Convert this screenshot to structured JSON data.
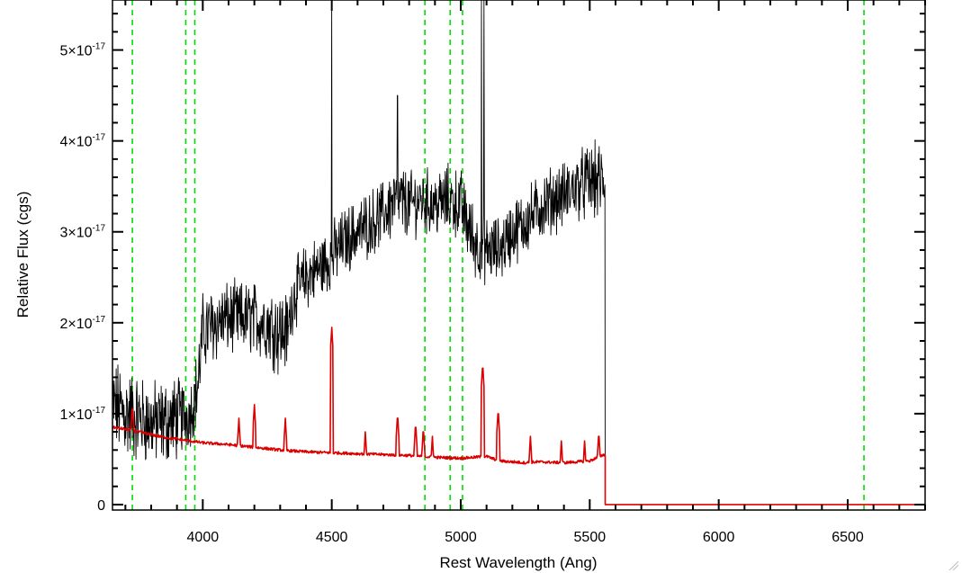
{
  "chart_data": {
    "type": "line",
    "xlabel": "Rest Wavelength (Ang)",
    "ylabel": "Relative Flux (cgs)",
    "xlim": [
      3650,
      6800
    ],
    "ylim": [
      -0.06,
      5.55
    ],
    "y_unit_exponent": "-17",
    "x_ticks": [
      4000,
      4500,
      5000,
      5500,
      6000,
      6500
    ],
    "x_tick_labels": [
      "4000",
      "4500",
      "5000",
      "5500",
      "6000",
      "6500"
    ],
    "x_minor_step": 100,
    "y_ticks": [
      0,
      1,
      2,
      3,
      4,
      5
    ],
    "y_tick_labels": [
      {
        "mantissa": "0",
        "exp": ""
      },
      {
        "mantissa": "1×10",
        "exp": "-17"
      },
      {
        "mantissa": "2×10",
        "exp": "-17"
      },
      {
        "mantissa": "3×10",
        "exp": "-17"
      },
      {
        "mantissa": "4×10",
        "exp": "-17"
      },
      {
        "mantissa": "5×10",
        "exp": "-17"
      }
    ],
    "y_minor_step": 0.2,
    "grid": false,
    "reference_lines": {
      "color": "#00dd00",
      "style": "dashed",
      "x": [
        3727,
        3934,
        3969,
        4861,
        4959,
        5007,
        6563
      ]
    },
    "series": [
      {
        "color": "#000000",
        "style": "noisy",
        "end_x": 5560,
        "x": [
          3650,
          3700,
          3750,
          3800,
          3850,
          3900,
          3950,
          3980,
          4000,
          4050,
          4100,
          4150,
          4200,
          4250,
          4300,
          4330,
          4350,
          4400,
          4450,
          4490,
          4550,
          4600,
          4650,
          4700,
          4750,
          4800,
          4850,
          4900,
          4950,
          5000,
          5050,
          5100,
          5150,
          5200,
          5250,
          5300,
          5350,
          5400,
          5450,
          5500,
          5555
        ],
        "y": [
          1.1,
          1.0,
          0.95,
          0.9,
          0.9,
          0.95,
          1.0,
          1.3,
          1.9,
          2.0,
          2.05,
          2.05,
          2.05,
          2.0,
          1.9,
          1.9,
          2.3,
          2.5,
          2.6,
          2.7,
          2.9,
          3.0,
          3.1,
          3.2,
          3.35,
          3.3,
          3.35,
          3.3,
          3.35,
          3.3,
          2.9,
          2.8,
          2.8,
          3.0,
          3.1,
          3.25,
          3.35,
          3.4,
          3.5,
          3.55,
          3.55
        ],
        "noise": [
          0.4,
          0.45,
          0.4,
          0.38,
          0.4,
          0.38,
          0.3,
          0.35,
          0.35,
          0.35,
          0.33,
          0.33,
          0.33,
          0.35,
          0.4,
          0.35,
          0.3,
          0.3,
          0.3,
          0.3,
          0.3,
          0.3,
          0.3,
          0.3,
          0.35,
          0.3,
          0.3,
          0.3,
          0.32,
          0.32,
          0.35,
          0.3,
          0.3,
          0.3,
          0.3,
          0.3,
          0.3,
          0.3,
          0.3,
          0.35,
          0.35
        ],
        "spikes": [
          [
            4500,
            5.55
          ],
          [
            4755,
            4.5
          ],
          [
            5080,
            5.55
          ],
          [
            5090,
            5.55
          ]
        ]
      },
      {
        "color": "#dd0000",
        "style": "smooth",
        "end_x": 5560,
        "x": [
          3650,
          3700,
          3750,
          3800,
          3850,
          3900,
          3950,
          4000,
          4050,
          4100,
          4200,
          4300,
          4400,
          4500,
          4600,
          4700,
          4800,
          4900,
          5000,
          5050,
          5100,
          5150,
          5200,
          5250,
          5300,
          5400,
          5500,
          5555
        ],
        "y": [
          0.85,
          0.83,
          0.8,
          0.77,
          0.74,
          0.72,
          0.7,
          0.68,
          0.67,
          0.66,
          0.63,
          0.6,
          0.58,
          0.57,
          0.56,
          0.55,
          0.54,
          0.52,
          0.51,
          0.52,
          0.53,
          0.48,
          0.47,
          0.46,
          0.47,
          0.46,
          0.48,
          0.55
        ],
        "peaks": [
          [
            3727,
            1.1
          ],
          [
            4140,
            0.95
          ],
          [
            4200,
            1.1
          ],
          [
            4320,
            0.95
          ],
          [
            4500,
            1.95
          ],
          [
            4630,
            0.8
          ],
          [
            4755,
            1.0
          ],
          [
            4825,
            0.9
          ],
          [
            4855,
            0.85
          ],
          [
            4890,
            0.75
          ],
          [
            5085,
            1.55
          ],
          [
            5145,
            1.05
          ],
          [
            5270,
            0.75
          ],
          [
            5390,
            0.7
          ],
          [
            5480,
            0.7
          ],
          [
            5535,
            0.8
          ]
        ],
        "after_end": 0
      }
    ]
  }
}
